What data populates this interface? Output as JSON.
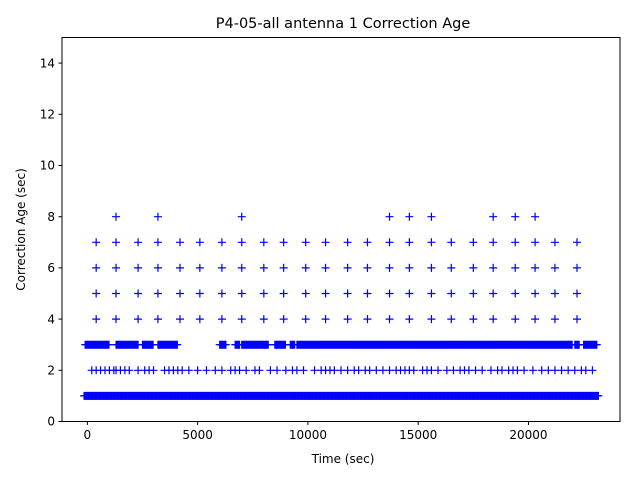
{
  "chart_data": {
    "type": "scatter",
    "title": "P4-05-all antenna 1 Correction Age",
    "xlabel": "Time (sec)",
    "ylabel": "Correction Age (sec)",
    "xlim": [
      -1150,
      24150
    ],
    "ylim": [
      0,
      15
    ],
    "xticks": [
      0,
      5000,
      10000,
      15000,
      20000
    ],
    "yticks": [
      0,
      2,
      4,
      6,
      8,
      10,
      12,
      14
    ],
    "grid": false,
    "marker": "+",
    "marker_color": "#0000ff",
    "dense_rows": [
      {
        "y": 1,
        "x_start": -150,
        "x_end": 23200
      },
      {
        "y": 3,
        "segments": [
          [
            -100,
            1000
          ],
          [
            1300,
            2300
          ],
          [
            2500,
            3000
          ],
          [
            3200,
            4100
          ],
          [
            6000,
            6300
          ],
          [
            6700,
            6900
          ],
          [
            7000,
            8200
          ],
          [
            8500,
            9000
          ],
          [
            9200,
            9400
          ],
          [
            9500,
            22000
          ],
          [
            22100,
            22300
          ],
          [
            22500,
            23100
          ]
        ]
      }
    ],
    "sparse_rows": [
      {
        "y": 2,
        "x": [
          200,
          400,
          600,
          800,
          1000,
          1200,
          1300,
          1500,
          1700,
          1900,
          2300,
          2600,
          2800,
          3000,
          3500,
          3700,
          3900,
          4100,
          4300,
          4600,
          5000,
          5400,
          5800,
          6100,
          6500,
          6700,
          6900,
          7200,
          7600,
          7800,
          8300,
          8600,
          9000,
          9300,
          9500,
          9800,
          10300,
          10600,
          10800,
          11000,
          11200,
          11500,
          11800,
          12100,
          12300,
          12600,
          12800,
          13100,
          13400,
          13700,
          14000,
          14200,
          14400,
          14600,
          14800,
          15200,
          15400,
          15600,
          15900,
          16300,
          16600,
          16900,
          17100,
          17300,
          17600,
          17900,
          18300,
          18600,
          18800,
          19100,
          19300,
          19500,
          19800,
          20200,
          20600,
          20900,
          21200,
          21500,
          21800,
          22100,
          22400,
          22600,
          22900
        ]
      },
      {
        "y": 4,
        "x": [
          400,
          1300,
          2300,
          3200,
          4200,
          5100,
          6100,
          7000,
          8000,
          8900,
          9900,
          10800,
          11800,
          12700,
          13700,
          14600,
          15600,
          16500,
          17500,
          18400,
          19400,
          20300,
          21200,
          22200
        ]
      },
      {
        "y": 5,
        "x": [
          400,
          1300,
          2300,
          3200,
          4200,
          5100,
          6100,
          7000,
          8000,
          8900,
          9900,
          10800,
          11800,
          12700,
          13700,
          14600,
          15600,
          16500,
          17500,
          18400,
          19400,
          20300,
          21200,
          22200
        ]
      },
      {
        "y": 6,
        "x": [
          400,
          1300,
          2300,
          3200,
          4200,
          5100,
          6100,
          7000,
          8000,
          8900,
          9900,
          10800,
          11800,
          12700,
          13700,
          14600,
          15600,
          16500,
          17500,
          18400,
          19400,
          20300,
          21200,
          22200
        ]
      },
      {
        "y": 7,
        "x": [
          400,
          1300,
          2300,
          3200,
          4200,
          5100,
          6100,
          7000,
          8000,
          8900,
          9900,
          10800,
          11800,
          12700,
          13700,
          14600,
          15600,
          16500,
          17500,
          18400,
          19400,
          20300,
          21200,
          22200
        ]
      },
      {
        "y": 8,
        "x": [
          1300,
          3200,
          7000,
          13700,
          14600,
          15600,
          18400,
          19400,
          20300
        ]
      }
    ]
  }
}
